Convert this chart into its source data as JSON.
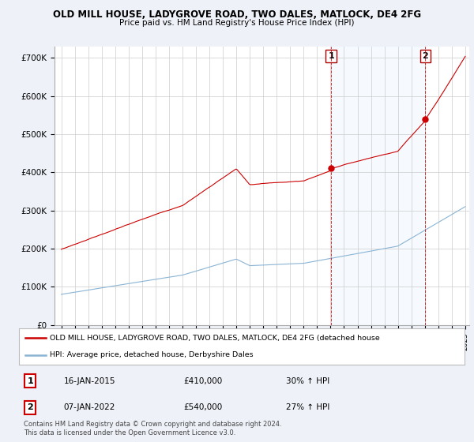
{
  "title1": "OLD MILL HOUSE, LADYGROVE ROAD, TWO DALES, MATLOCK, DE4 2FG",
  "title2": "Price paid vs. HM Land Registry's House Price Index (HPI)",
  "ylabel_ticks": [
    "£0",
    "£100K",
    "£200K",
    "£300K",
    "£400K",
    "£500K",
    "£600K",
    "£700K"
  ],
  "ytick_vals": [
    0,
    100000,
    200000,
    300000,
    400000,
    500000,
    600000,
    700000
  ],
  "ylim": [
    0,
    730000
  ],
  "background_color": "#eef2f8",
  "plot_bg": "#ffffff",
  "legend1_label": "OLD MILL HOUSE, LADYGROVE ROAD, TWO DALES, MATLOCK, DE4 2FG (detached house",
  "legend2_label": "HPI: Average price, detached house, Derbyshire Dales",
  "red_color": "#cc0000",
  "blue_color": "#8ab4d4",
  "shade_color": "#ddeeff",
  "annotation1": {
    "num": "1",
    "date": "16-JAN-2015",
    "price": "£410,000",
    "pct": "30% ↑ HPI"
  },
  "annotation2": {
    "num": "2",
    "date": "07-JAN-2022",
    "price": "£540,000",
    "pct": "27% ↑ HPI"
  },
  "footnote": "Contains HM Land Registry data © Crown copyright and database right 2024.\nThis data is licensed under the Open Government Licence v3.0.",
  "sale1_t": 2015.04,
  "sale2_t": 2022.04,
  "sale1_val": 410000,
  "sale2_val": 540000,
  "xstart": 1995,
  "xend": 2025
}
